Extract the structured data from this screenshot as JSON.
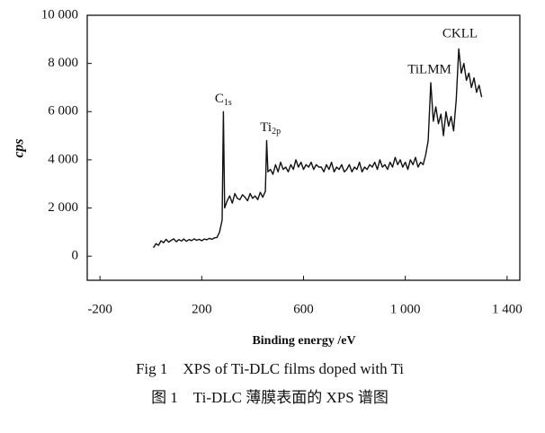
{
  "chart_data": {
    "type": "line",
    "x_label": "Binding energy /eV",
    "y_label": "cps",
    "caption": "Fig 1　XPS of Ti-DLC films doped with Ti",
    "caption_cn": "图 1　Ti-DLC 薄膜表面的 XPS 谱图",
    "color": "#111111",
    "xlim": [
      -250,
      1450
    ],
    "ylim": [
      -1000,
      10000
    ],
    "xticks": [
      -200,
      200,
      600,
      {
        "value": 1000,
        "label": "1 000"
      },
      {
        "value": 1400,
        "label": "1 400"
      }
    ],
    "yticks": [
      0,
      {
        "value": 2000,
        "label": "2 000"
      },
      {
        "value": 4000,
        "label": "4 000"
      },
      {
        "value": 6000,
        "label": "6 000"
      },
      {
        "value": 8000,
        "label": "8 000"
      },
      {
        "value": 10000,
        "label": "10 000"
      }
    ],
    "annotations": [
      {
        "text": "C",
        "sub": "1s",
        "x": 285,
        "y": 6500
      },
      {
        "text": "Ti",
        "sub": "2p",
        "x": 470,
        "y": 5300
      },
      {
        "text": "TiLMM",
        "x": 1095,
        "y": 7700
      },
      {
        "text": "CKLL",
        "x": 1215,
        "y": 9200
      }
    ],
    "x": [
      10,
      20,
      30,
      40,
      50,
      60,
      70,
      80,
      90,
      100,
      110,
      120,
      130,
      140,
      150,
      160,
      170,
      180,
      190,
      200,
      210,
      220,
      230,
      240,
      250,
      260,
      270,
      280,
      285,
      290,
      300,
      310,
      320,
      330,
      340,
      350,
      360,
      370,
      380,
      390,
      400,
      410,
      420,
      430,
      440,
      450,
      455,
      460,
      470,
      480,
      490,
      500,
      510,
      520,
      530,
      540,
      550,
      560,
      570,
      580,
      590,
      600,
      610,
      620,
      630,
      640,
      650,
      660,
      670,
      680,
      690,
      700,
      710,
      720,
      730,
      740,
      750,
      760,
      770,
      780,
      790,
      800,
      810,
      820,
      830,
      840,
      850,
      860,
      870,
      880,
      890,
      900,
      910,
      920,
      930,
      940,
      950,
      960,
      970,
      980,
      990,
      1000,
      1010,
      1020,
      1030,
      1040,
      1050,
      1060,
      1070,
      1080,
      1090,
      1100,
      1110,
      1120,
      1130,
      1140,
      1150,
      1160,
      1170,
      1180,
      1190,
      1200,
      1210,
      1220,
      1230,
      1240,
      1250,
      1260,
      1270,
      1280,
      1290,
      1300
    ],
    "values": [
      350,
      520,
      450,
      640,
      560,
      700,
      580,
      660,
      720,
      600,
      690,
      630,
      710,
      620,
      690,
      650,
      720,
      660,
      700,
      640,
      710,
      680,
      740,
      700,
      760,
      780,
      1000,
      1500,
      6000,
      2000,
      2300,
      2500,
      2200,
      2600,
      2400,
      2350,
      2550,
      2450,
      2300,
      2600,
      2400,
      2500,
      2350,
      2650,
      2450,
      2700,
      4800,
      3500,
      3600,
      3400,
      3800,
      3500,
      3900,
      3600,
      3700,
      3500,
      3800,
      3600,
      4000,
      3700,
      3900,
      3600,
      3800,
      3700,
      3900,
      3600,
      3800,
      3700,
      3700,
      3500,
      3800,
      3600,
      3900,
      3500,
      3700,
      3600,
      3800,
      3500,
      3600,
      3800,
      3500,
      3700,
      3600,
      3900,
      3500,
      3700,
      3600,
      3800,
      3700,
      3900,
      3600,
      4000,
      3700,
      3800,
      3600,
      3900,
      3700,
      4100,
      3800,
      4000,
      3700,
      3900,
      3600,
      4000,
      3800,
      4100,
      3700,
      3900,
      3800,
      4200,
      4800,
      7200,
      5600,
      6200,
      5500,
      5900,
      5000,
      6000,
      5400,
      5800,
      5200,
      6500,
      8600,
      7600,
      8000,
      7300,
      7600,
      7000,
      7400,
      6800,
      7100,
      6600
    ]
  }
}
